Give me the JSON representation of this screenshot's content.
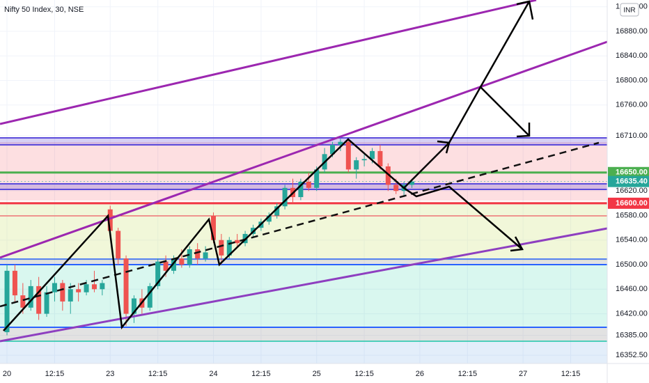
{
  "chart_data": {
    "type": "candlestick",
    "title": "Nifty 50 Index, 30, NSE",
    "currency": "INR",
    "up_color": "#26a69a",
    "down_color": "#ef5350",
    "grid": true,
    "open": [
      16390,
      16490,
      16450,
      16430,
      16465,
      16420,
      16455,
      16470,
      16440,
      16460,
      16455,
      16468,
      16460,
      16590,
      16555,
      16510,
      16420,
      16445,
      16430,
      16465,
      16505,
      16490,
      16510,
      16500,
      16525,
      16510,
      16580,
      16540,
      16515,
      16540,
      16535,
      16550,
      16560,
      16570,
      16580,
      16595,
      16625,
      16610,
      16635,
      16625,
      16655,
      16680,
      16695,
      16700,
      16655,
      16670,
      16672,
      16685,
      16660,
      16630,
      16620,
      16630
    ],
    "high": [
      16500,
      16500,
      16470,
      16475,
      16480,
      16465,
      16480,
      16475,
      16470,
      16470,
      16475,
      16490,
      16475,
      16596,
      16560,
      16515,
      16450,
      16460,
      16470,
      16510,
      16515,
      16515,
      16525,
      16530,
      16535,
      16530,
      16585,
      16550,
      16545,
      16550,
      16555,
      16565,
      16575,
      16585,
      16600,
      16630,
      16640,
      16640,
      16650,
      16660,
      16690,
      16700,
      16705,
      16705,
      16675,
      16680,
      16690,
      16695,
      16665,
      16640,
      16635,
      16640
    ],
    "low": [
      16385,
      16440,
      16420,
      16425,
      16410,
      16415,
      16440,
      16425,
      16420,
      16440,
      16450,
      16455,
      16450,
      16550,
      16500,
      16400,
      16405,
      16420,
      16425,
      16460,
      16480,
      16485,
      16495,
      16495,
      16500,
      16505,
      16535,
      16500,
      16510,
      16530,
      16530,
      16545,
      16555,
      16565,
      16575,
      16590,
      16600,
      16605,
      16620,
      16620,
      16650,
      16675,
      16685,
      16650,
      16640,
      16660,
      16665,
      16655,
      16620,
      16615,
      16610,
      16625
    ],
    "close": [
      16490,
      16450,
      16430,
      16465,
      16420,
      16455,
      16470,
      16440,
      16460,
      16455,
      16468,
      16460,
      16470,
      16555,
      16510,
      16420,
      16445,
      16430,
      16465,
      16505,
      16490,
      16510,
      16500,
      16525,
      16510,
      16520,
      16540,
      16515,
      16540,
      16535,
      16550,
      16560,
      16570,
      16580,
      16595,
      16625,
      16610,
      16635,
      16625,
      16655,
      16680,
      16695,
      16700,
      16655,
      16670,
      16672,
      16685,
      16660,
      16630,
      16620,
      16630,
      16635.4
    ],
    "ylim": [
      16339,
      16931
    ],
    "yticks": [
      {
        "value": 16920,
        "label": "16920.00"
      },
      {
        "value": 16880,
        "label": "16880.00"
      },
      {
        "value": 16840,
        "label": "16840.00"
      },
      {
        "value": 16800,
        "label": "16800.00"
      },
      {
        "value": 16760,
        "label": "16760.00"
      },
      {
        "value": 16710,
        "label": "16710.00"
      },
      {
        "value": 16620,
        "label": "16620.00"
      },
      {
        "value": 16580,
        "label": "16580.00"
      },
      {
        "value": 16540,
        "label": "16540.00"
      },
      {
        "value": 16500,
        "label": "16500.00"
      },
      {
        "value": 16460,
        "label": "16460.00"
      },
      {
        "value": 16420,
        "label": "16420.00"
      },
      {
        "value": 16385,
        "label": "16385.00"
      },
      {
        "value": 16352.5,
        "label": "16352.50"
      }
    ],
    "xlim": [
      -0.88,
      75.6
    ],
    "xticks": [
      {
        "value": 0,
        "label": "20"
      },
      {
        "value": 6,
        "label": "12:15"
      },
      {
        "value": 13,
        "label": "23"
      },
      {
        "value": 19,
        "label": "12:15"
      },
      {
        "value": 26,
        "label": "24"
      },
      {
        "value": 32,
        "label": "12:15"
      },
      {
        "value": 39,
        "label": "25"
      },
      {
        "value": 45,
        "label": "12:15"
      },
      {
        "value": 52,
        "label": "26"
      },
      {
        "value": 58,
        "label": "12:15"
      },
      {
        "value": 65,
        "label": "27"
      },
      {
        "value": 71,
        "label": "12:15"
      }
    ],
    "price_lines": [
      {
        "value": 16650,
        "label": "16650.00",
        "color": "#4caf50"
      },
      {
        "value": 16635.4,
        "label": "16635.40",
        "color": "#26a69a"
      },
      {
        "value": 16600,
        "label": "16600.00",
        "color": "#f23645"
      }
    ]
  }
}
